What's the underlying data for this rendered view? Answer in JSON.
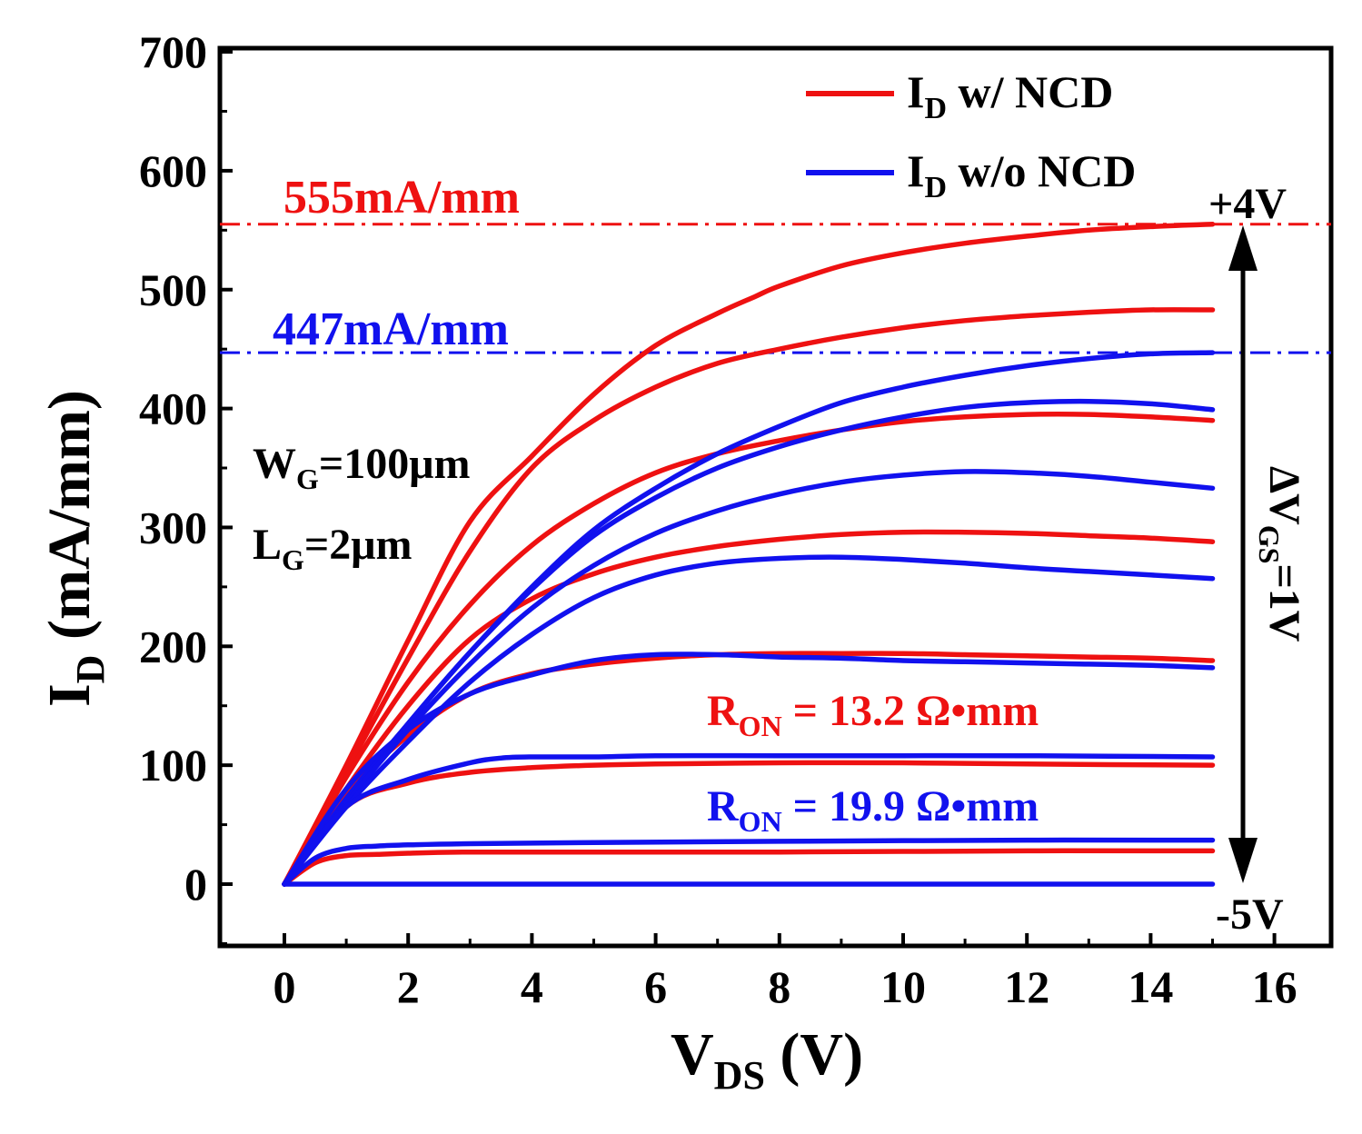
{
  "chart_data": {
    "type": "line",
    "xlabel": {
      "main": "V",
      "sub": "DS",
      "suffix": " (V)"
    },
    "ylabel": {
      "main": "I",
      "sub": "D",
      "suffix": " (mA/mm)"
    },
    "xlim": [
      -1,
      17
    ],
    "ylim": [
      -50,
      700
    ],
    "xticks": [
      0,
      2,
      4,
      6,
      8,
      10,
      12,
      14,
      16
    ],
    "yticks": [
      0,
      100,
      200,
      300,
      400,
      500,
      600,
      700
    ],
    "xtick_labels": [
      "0",
      "2",
      "4",
      "6",
      "8",
      "10",
      "12",
      "14",
      "16"
    ],
    "ytick_labels": [
      "0",
      "100",
      "200",
      "300",
      "400",
      "500",
      "600",
      "700"
    ],
    "colors": {
      "ncd": "#ee1111",
      "no_ncd": "#1111ee",
      "axis": "#000000"
    },
    "legend": [
      {
        "main": "I",
        "sub": "D",
        "suffix": " w/ NCD",
        "color": "#ee1111"
      },
      {
        "main": "I",
        "sub": "D",
        "suffix": " w/o NCD",
        "color": "#1111ee"
      }
    ],
    "reference_lines": [
      {
        "y": 555,
        "label": "555mA/mm",
        "color": "#ee1111"
      },
      {
        "y": 447,
        "label": "447mA/mm",
        "color": "#1111ee"
      }
    ],
    "annotations": {
      "wg": {
        "main": "W",
        "sub": "G",
        "suffix": "=100μm"
      },
      "lg": {
        "main": "L",
        "sub": "G",
        "suffix": "=2μm"
      },
      "ron_ncd": {
        "main": "R",
        "sub": "ON",
        "suffix": " = 13.2 Ω•mm"
      },
      "ron_no_ncd": {
        "main": "R",
        "sub": "ON",
        "suffix": " = 19.9 Ω•mm"
      },
      "vgs_top": "+4V",
      "vgs_bottom": "-5V",
      "vgs_step": {
        "main": "ΔV",
        "sub": "GS",
        "suffix": "=1V"
      }
    },
    "series": [
      {
        "name": "I_D w/ NCD, V_GS=+4V",
        "group": "ncd",
        "x": [
          0,
          1,
          2,
          3,
          4,
          5,
          6,
          7,
          7.6,
          8,
          9,
          10,
          11,
          12,
          13,
          14,
          15
        ],
        "y": [
          0,
          100,
          205,
          305,
          360,
          412,
          453,
          480,
          494,
          503,
          520,
          531,
          539,
          545,
          550,
          553,
          555
        ]
      },
      {
        "name": "I_D w/ NCD, V_GS=+3V",
        "group": "ncd",
        "x": [
          0,
          1,
          2,
          3,
          4,
          5,
          6,
          7,
          8,
          9,
          10,
          11,
          12,
          13,
          14,
          15
        ],
        "y": [
          0,
          95,
          190,
          280,
          350,
          390,
          418,
          438,
          450,
          460,
          468,
          474,
          478,
          481,
          483,
          483
        ]
      },
      {
        "name": "I_D w/ NCD, V_GS=+2V",
        "group": "ncd",
        "x": [
          0,
          1,
          2,
          3,
          4,
          5,
          6,
          7,
          8,
          9,
          10,
          11,
          12,
          13,
          14,
          15
        ],
        "y": [
          0,
          90,
          170,
          235,
          285,
          320,
          346,
          362,
          373,
          382,
          389,
          393,
          395,
          395,
          393,
          390
        ]
      },
      {
        "name": "I_D w/ NCD, V_GS=+1V",
        "group": "ncd",
        "x": [
          0,
          1,
          2,
          3,
          4,
          5,
          6,
          7,
          8,
          9,
          10,
          11,
          12,
          13,
          14,
          15
        ],
        "y": [
          0,
          80,
          150,
          206,
          240,
          261,
          275,
          284,
          290,
          294,
          296,
          296,
          295,
          293,
          291,
          288
        ]
      },
      {
        "name": "I_D w/ NCD, V_GS=0V",
        "group": "ncd",
        "x": [
          0,
          1,
          2,
          3,
          4,
          5,
          6,
          7,
          8,
          9,
          10,
          11,
          12,
          13,
          14,
          15
        ],
        "y": [
          0,
          75,
          125,
          160,
          177,
          185,
          190,
          193,
          194,
          194,
          194,
          193,
          192,
          191,
          190,
          188
        ]
      },
      {
        "name": "I_D w/ NCD, V_GS=-1V",
        "group": "ncd",
        "x": [
          0,
          1,
          2,
          3,
          4,
          5,
          6,
          8,
          10,
          12,
          15
        ],
        "y": [
          0,
          65,
          85,
          94,
          98,
          100,
          101,
          102,
          102,
          101,
          100
        ]
      },
      {
        "name": "I_D w/ NCD, V_GS=-2V",
        "group": "ncd",
        "x": [
          0,
          0.5,
          1,
          1.5,
          2,
          3,
          5,
          8,
          12,
          15
        ],
        "y": [
          0,
          18,
          24,
          25,
          26,
          27,
          27,
          27,
          28,
          28
        ]
      },
      {
        "name": "I_D w/o NCD, V_GS=+4V",
        "group": "no_ncd",
        "x": [
          0,
          1,
          2,
          3,
          4,
          5,
          6,
          7,
          8,
          9,
          10,
          11,
          12,
          13,
          14,
          15
        ],
        "y": [
          0,
          70,
          135,
          195,
          250,
          298,
          333,
          362,
          385,
          405,
          418,
          428,
          436,
          442,
          446,
          447
        ]
      },
      {
        "name": "I_D w/o NCD, V_GS=+3V",
        "group": "no_ncd",
        "x": [
          0,
          1,
          2,
          3,
          4,
          5,
          6,
          7,
          8,
          9,
          10,
          11,
          12,
          13,
          14,
          15
        ],
        "y": [
          0,
          72,
          135,
          195,
          248,
          293,
          325,
          350,
          368,
          382,
          393,
          401,
          405,
          406,
          404,
          399
        ]
      },
      {
        "name": "I_D w/o NCD, V_GS=+2V",
        "group": "no_ncd",
        "x": [
          0,
          1,
          2,
          3,
          4,
          5,
          6,
          7,
          8,
          9,
          10,
          11,
          12,
          13,
          14,
          15
        ],
        "y": [
          0,
          68,
          130,
          185,
          232,
          268,
          295,
          314,
          328,
          338,
          344,
          347,
          346,
          343,
          338,
          333
        ]
      },
      {
        "name": "I_D w/o NCD, V_GS=+1V",
        "group": "no_ncd",
        "x": [
          0,
          1,
          2,
          3,
          4,
          5,
          6,
          7,
          8,
          9,
          10,
          11,
          12,
          13,
          14,
          15
        ],
        "y": [
          0,
          65,
          120,
          170,
          210,
          241,
          260,
          270,
          274,
          275,
          273,
          270,
          266,
          263,
          260,
          257
        ]
      },
      {
        "name": "I_D w/o NCD, V_GS=0V",
        "group": "no_ncd",
        "x": [
          0,
          1,
          2,
          3,
          4,
          5,
          6,
          7,
          8,
          9,
          10,
          11,
          12,
          13,
          14,
          15
        ],
        "y": [
          0,
          80,
          130,
          160,
          176,
          188,
          193,
          193,
          191,
          190,
          188,
          187,
          186,
          185,
          184,
          182
        ]
      },
      {
        "name": "I_D w/o NCD, V_GS=-1V",
        "group": "no_ncd",
        "x": [
          0,
          1,
          2,
          3,
          3.5,
          4,
          5,
          6,
          8,
          10,
          12,
          15
        ],
        "y": [
          0,
          65,
          88,
          102,
          106,
          107,
          107,
          108,
          108,
          108,
          108,
          107
        ]
      },
      {
        "name": "I_D w/o NCD, V_GS=-2V",
        "group": "no_ncd",
        "x": [
          0,
          0.5,
          1,
          1.5,
          2,
          3,
          5,
          8,
          12,
          15
        ],
        "y": [
          0,
          22,
          30,
          32,
          33,
          34,
          35,
          36,
          37,
          37
        ]
      },
      {
        "name": "I_D w/o NCD, V_GS<=-3V",
        "group": "no_ncd",
        "x": [
          0,
          5,
          10,
          15
        ],
        "y": [
          0,
          0,
          0,
          0
        ]
      }
    ]
  }
}
